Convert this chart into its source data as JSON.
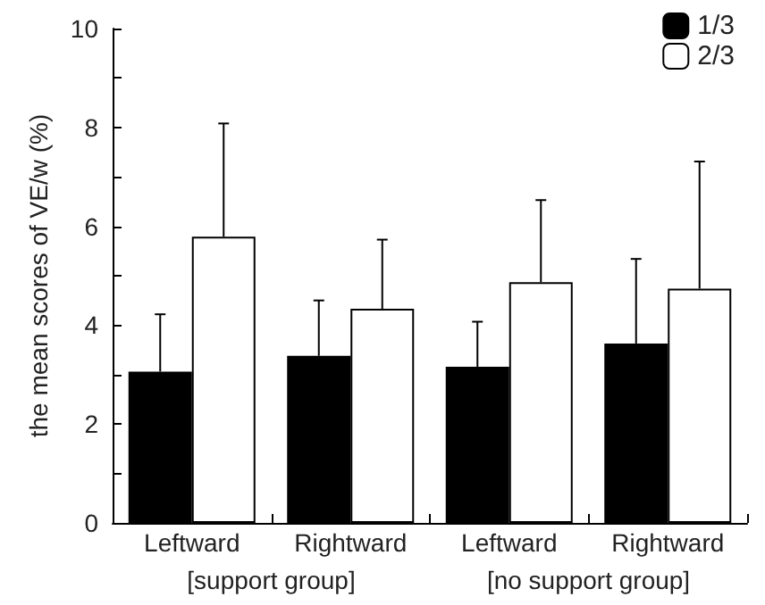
{
  "chart_data": {
    "type": "bar",
    "ylabel": "the mean scores of VE/w (%)",
    "categories": [
      "Leftward",
      "Rightward",
      "Leftward",
      "Rightward"
    ],
    "series": [
      {
        "name": "1/3",
        "color": "#000000",
        "values": [
          3.06,
          3.38,
          3.16,
          3.63
        ],
        "errors": [
          [
            3.06,
            4.22
          ],
          [
            3.38,
            4.5
          ],
          [
            3.16,
            4.07
          ],
          [
            3.63,
            5.34
          ]
        ]
      },
      {
        "name": "2/3",
        "color": "#ffffff",
        "values": [
          5.79,
          4.33,
          4.87,
          4.74
        ],
        "errors": [
          [
            5.79,
            8.08
          ],
          [
            4.33,
            5.73
          ],
          [
            4.87,
            6.53
          ],
          [
            4.74,
            7.31
          ]
        ]
      }
    ],
    "ylim": [
      0,
      10
    ],
    "yticks": [
      0,
      {
        "value": 1,
        "label": null
      },
      2,
      {
        "value": 3,
        "label": null
      },
      4,
      {
        "value": 5,
        "label": null
      },
      6,
      {
        "value": 7,
        "label": null
      },
      8,
      {
        "value": 9,
        "label": null
      },
      10
    ],
    "annotations": [
      "[support group]",
      "[no support group]"
    ],
    "legend": "top right",
    "grid": false
  }
}
